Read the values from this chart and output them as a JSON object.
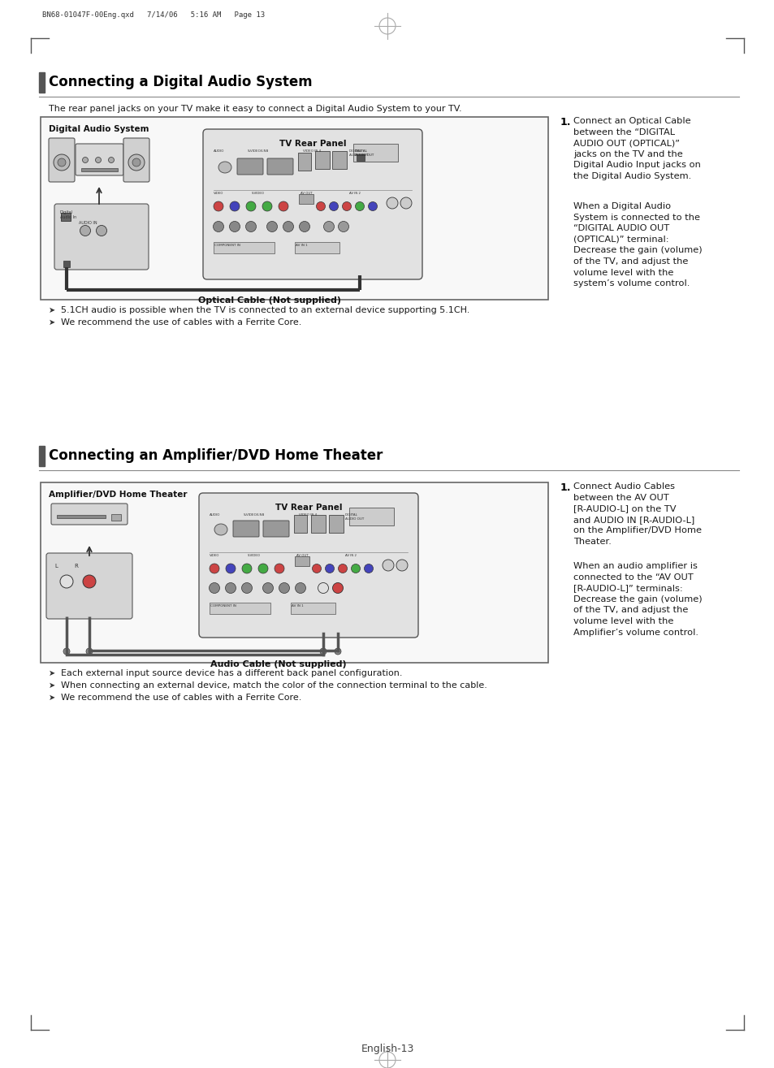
{
  "page_bg": "#ffffff",
  "header_text": "BN68-01047F-00Eng.qxd   7/14/06   5:16 AM   Page 13",
  "footer_text": "English-13",
  "section1_title": "Connecting a Digital Audio System",
  "section1_subtitle": "The rear panel jacks on your TV make it easy to connect a Digital Audio System to your TV.",
  "section1_box_label1": "Digital Audio System",
  "section1_box_label2": "TV Rear Panel",
  "section1_cable_label": "Optical Cable (Not supplied)",
  "section1_bullet1": "5.1CH audio is possible when the TV is connected to an external device supporting 5.1CH.",
  "section1_bullet2": "We recommend the use of cables with a Ferrite Core.",
  "section1_step1_num": "1.",
  "section1_step1_para1": "Connect an Optical Cable\nbetween the “DIGITAL\nAUDIO OUT (OPTICAL)”\njacks on the TV and the\nDigital Audio Input jacks on\nthe Digital Audio System.",
  "section1_step1_para2": "When a Digital Audio\nSystem is connected to the\n“DIGITAL AUDIO OUT\n(OPTICAL)” terminal:\nDecrease the gain (volume)\nof the TV, and adjust the\nvolume level with the\nsystem’s volume control.",
  "section2_title": "Connecting an Amplifier/DVD Home Theater",
  "section2_box_label1": "Amplifier/DVD Home Theater",
  "section2_box_label2": "TV Rear Panel",
  "section2_cable_label": "Audio Cable (Not supplied)",
  "section2_bullet1": "Each external input source device has a different back panel configuration.",
  "section2_bullet2": "When connecting an external device, match the color of the connection terminal to the cable.",
  "section2_bullet3": "We recommend the use of cables with a Ferrite Core.",
  "section2_step1_num": "1.",
  "section2_step1_para1": "Connect Audio Cables\nbetween the AV OUT\n[R-AUDIO-L] on the TV\nand AUDIO IN [R-AUDIO-L]\non the Amplifier/DVD Home\nTheater.",
  "section2_step1_para2": "When an audio amplifier is\nconnected to the “AV OUT\n[R-AUDIO-L]” terminals:\nDecrease the gain (volume)\nof the TV, and adjust the\nvolume level with the\nAmplifier’s volume control.",
  "sidebar_color": "#555555",
  "title_color": "#000000",
  "text_color": "#1a1a1a",
  "rule_color": "#888888",
  "box_border": "#666666",
  "box_bg": "#f8f8f8",
  "tv_bg": "#e8e8e8",
  "tv_border": "#555555",
  "device_bg": "#d8d8d8",
  "device_border": "#444444",
  "cable_color": "#444444",
  "header_color": "#333333"
}
